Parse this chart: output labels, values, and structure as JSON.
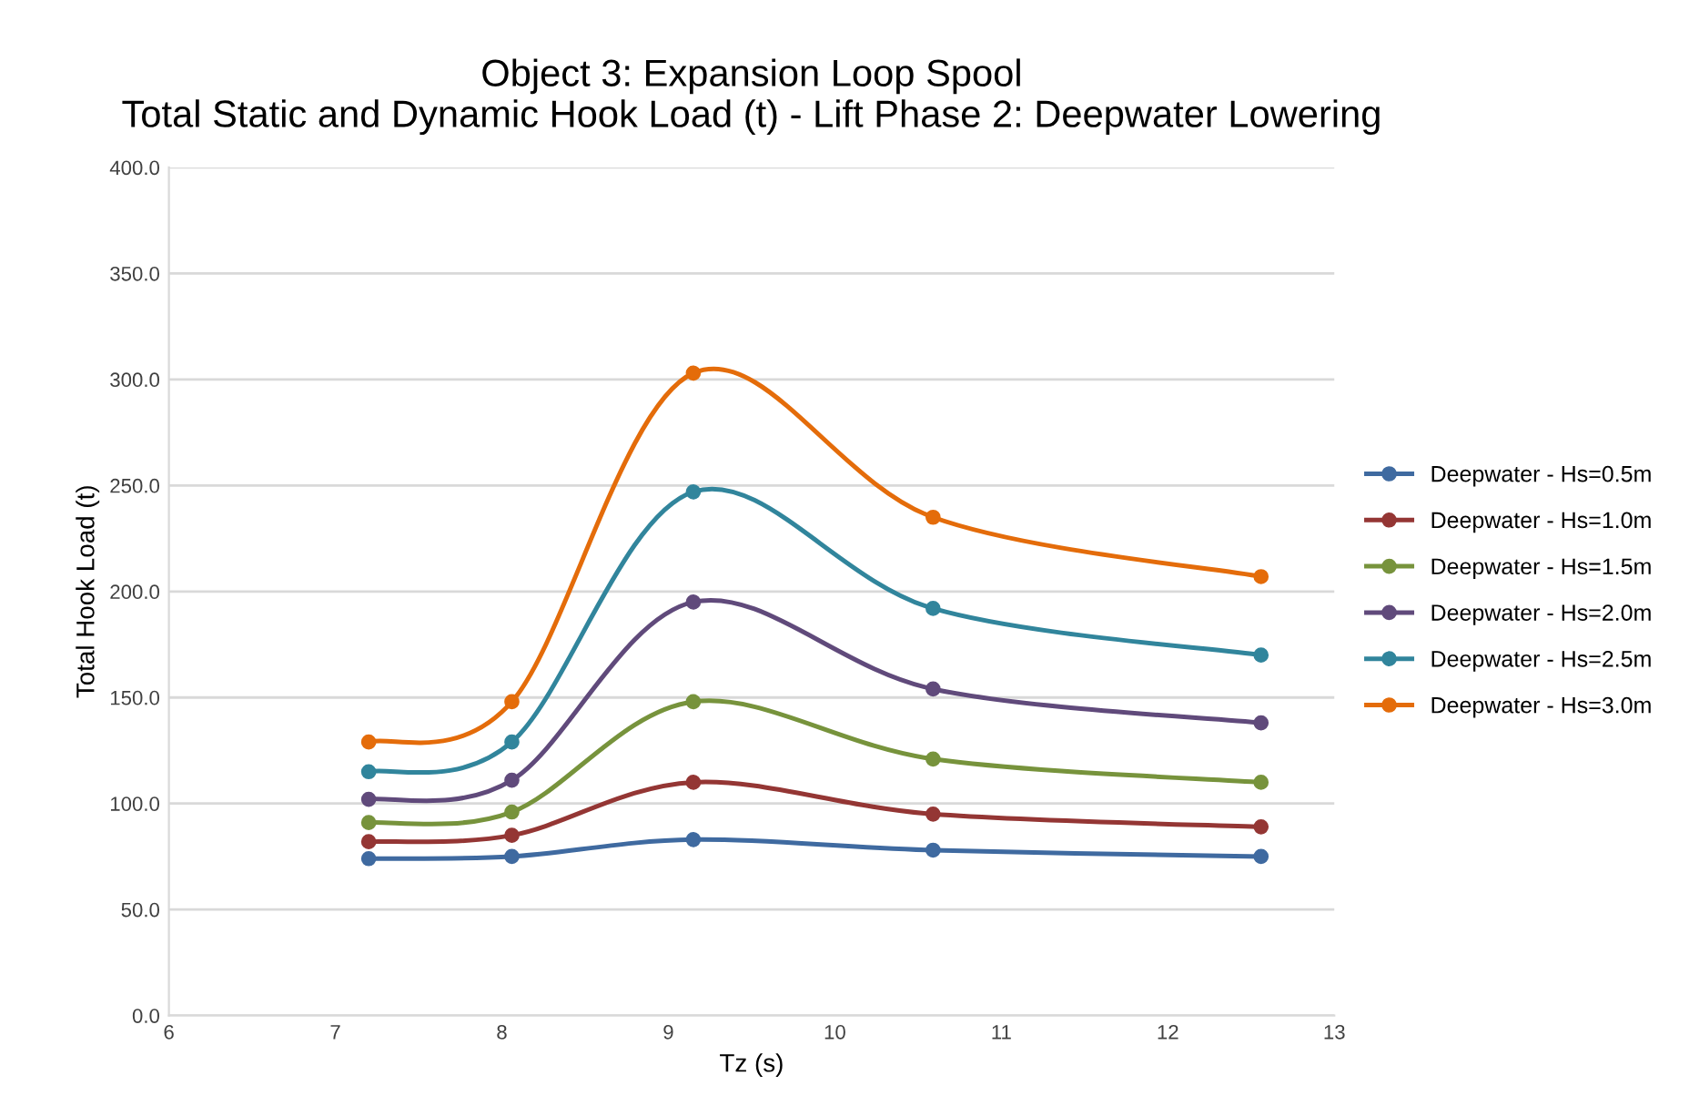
{
  "chart_data": {
    "type": "line",
    "title": "Object 3: Expansion Loop Spool\nTotal Static and Dynamic Hook Load (t) - Lift Phase 2: Deepwater Lowering",
    "xlabel": "Tz (s)",
    "ylabel": "Total Hook Load (t)",
    "x": [
      7.2,
      8.06,
      9.15,
      10.59,
      12.56
    ],
    "series": [
      {
        "name": "Deepwater - Hs=0.5m",
        "color": "#3f6aa0",
        "values": [
          74,
          75,
          83,
          78,
          75
        ]
      },
      {
        "name": "Deepwater - Hs=1.0m",
        "color": "#943634",
        "values": [
          82,
          85,
          110,
          95,
          89
        ]
      },
      {
        "name": "Deepwater - Hs=1.5m",
        "color": "#77933c",
        "values": [
          91,
          96,
          148,
          121,
          110
        ]
      },
      {
        "name": "Deepwater - Hs=2.0m",
        "color": "#604a7b",
        "values": [
          102,
          111,
          195,
          154,
          138
        ]
      },
      {
        "name": "Deepwater - Hs=2.5m",
        "color": "#31859c",
        "values": [
          115,
          129,
          247,
          192,
          170
        ]
      },
      {
        "name": "Deepwater - Hs=3.0m",
        "color": "#e46c0a",
        "values": [
          129,
          148,
          303,
          235,
          207
        ]
      }
    ],
    "xlim": [
      6,
      13
    ],
    "xticks": [
      6,
      7,
      8,
      9,
      10,
      11,
      12,
      13
    ],
    "ylim": [
      0,
      400
    ],
    "yticks": [
      {
        "value": 0,
        "label": "0.0"
      },
      {
        "value": 50,
        "label": "50.0"
      },
      {
        "value": 100,
        "label": "100.0"
      },
      {
        "value": 150,
        "label": "150.0"
      },
      {
        "value": 200,
        "label": "200.0"
      },
      {
        "value": 250,
        "label": "250.0"
      },
      {
        "value": 300,
        "label": "300.0"
      },
      {
        "value": 350,
        "label": "350.0"
      },
      {
        "value": 400,
        "label": "400.0"
      }
    ],
    "grid": "y",
    "legend": "right",
    "marker": "circle",
    "line_style": "solid"
  }
}
